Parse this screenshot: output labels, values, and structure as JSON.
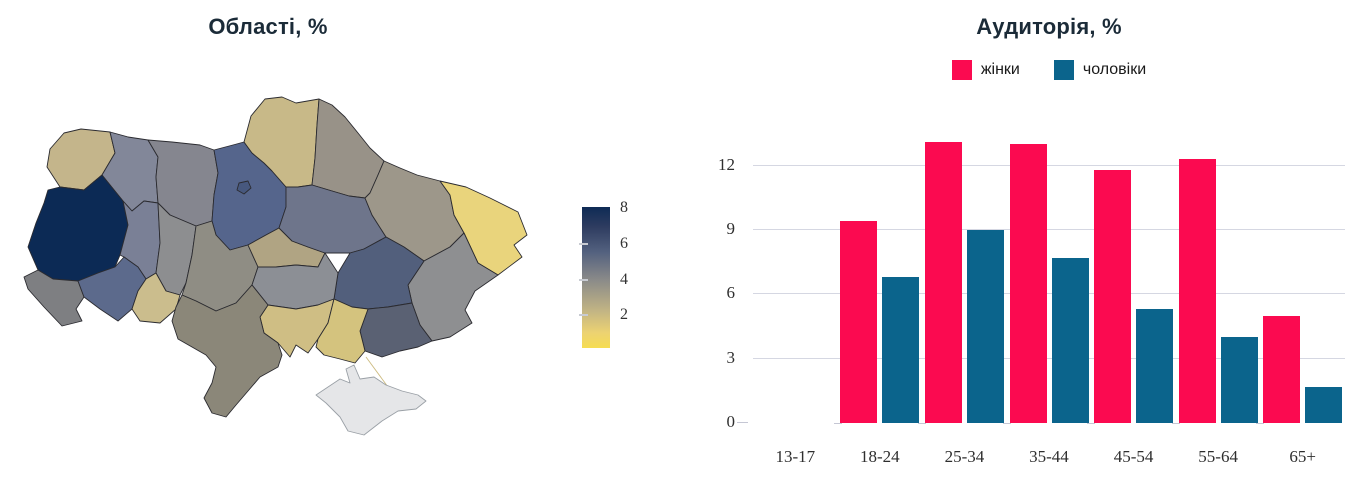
{
  "accent_colors": {
    "female_pink": "#fb0a50",
    "male_teal": "#0b648c",
    "title_navy": "#1b2b38",
    "scale_low_yellow": "#f6dd52",
    "scale_high_navy": "#0e2b55",
    "no_data_gray": "#e5e6e8"
  },
  "chart_data": [
    {
      "type": "choropleth",
      "title": "Області, %",
      "unit": "%",
      "border_color": "#2b2b30",
      "scale": {
        "min": 0,
        "max": 8,
        "ticks": [
          8,
          6,
          4,
          2
        ],
        "gradient_stops": [
          "#f6dd52",
          "#c3b584",
          "#8b8b89",
          "#53617f",
          "#0e2b55"
        ]
      },
      "regions": [
        {
          "name": "Волинська",
          "value": 2.6,
          "color": "#c4b58b"
        },
        {
          "name": "Рівненська",
          "value": 4.7,
          "color": "#828799"
        },
        {
          "name": "Житомирська",
          "value": 4.4,
          "color": "#85868f"
        },
        {
          "name": "Київська",
          "value": 5.9,
          "color": "#55658c"
        },
        {
          "name": "м. Київ",
          "value": 6.4,
          "color": "#47587e"
        },
        {
          "name": "Чернігівська",
          "value": 2.5,
          "color": "#c8b988"
        },
        {
          "name": "Сумська",
          "value": 3.8,
          "color": "#989288"
        },
        {
          "name": "Львівська",
          "value": 8.0,
          "color": "#0c2a55"
        },
        {
          "name": "Тернопільська",
          "value": 4.8,
          "color": "#7a8096"
        },
        {
          "name": "Хмельницька",
          "value": 4.2,
          "color": "#8d8e90"
        },
        {
          "name": "Вінницька",
          "value": 4.1,
          "color": "#8f8d84"
        },
        {
          "name": "Закарпатська",
          "value": 4.4,
          "color": "#7e7f82"
        },
        {
          "name": "Івано-Франківська",
          "value": 5.8,
          "color": "#5c6a8c"
        },
        {
          "name": "Чернівецька",
          "value": 2.3,
          "color": "#cbbd8d"
        },
        {
          "name": "Черкаська",
          "value": 3.1,
          "color": "#b0a483"
        },
        {
          "name": "Полтавська",
          "value": 5.3,
          "color": "#6e758b"
        },
        {
          "name": "Харківська",
          "value": 3.6,
          "color": "#9d978a"
        },
        {
          "name": "Луганська",
          "value": 1.2,
          "color": "#e9d47c"
        },
        {
          "name": "Донецька",
          "value": 4.2,
          "color": "#8e8f91"
        },
        {
          "name": "Дніпропетровська",
          "value": 6.2,
          "color": "#525f7c"
        },
        {
          "name": "Запорізька",
          "value": 5.5,
          "color": "#5a6173"
        },
        {
          "name": "Кіровоградська",
          "value": 4.2,
          "color": "#8c8f95"
        },
        {
          "name": "Миколаївська",
          "value": 2.1,
          "color": "#cfbe84"
        },
        {
          "name": "Херсонська",
          "value": 2.0,
          "color": "#d4c37e"
        },
        {
          "name": "Одеська",
          "value": 4.0,
          "color": "#8b8779"
        },
        {
          "name": "Крим",
          "value": null,
          "color": "#e5e6e8",
          "stroke": "#9aa0a6"
        }
      ]
    },
    {
      "type": "bar",
      "title": "Аудиторія, %",
      "categories": [
        "13-17",
        "18-24",
        "25-34",
        "35-44",
        "45-54",
        "55-64",
        "65+"
      ],
      "series": [
        {
          "name": "жінки",
          "color": "#fb0a50",
          "values": [
            0,
            9.4,
            13.1,
            13.0,
            11.8,
            12.3,
            5.0
          ]
        },
        {
          "name": "чоловіки",
          "color": "#0b648c",
          "values": [
            0,
            6.8,
            9.0,
            7.7,
            5.3,
            4.0,
            1.7
          ]
        }
      ],
      "yticks": [
        0,
        3,
        6,
        9,
        12
      ],
      "ylim": [
        0,
        13.2
      ],
      "grid": true,
      "legend_position": "top"
    }
  ]
}
